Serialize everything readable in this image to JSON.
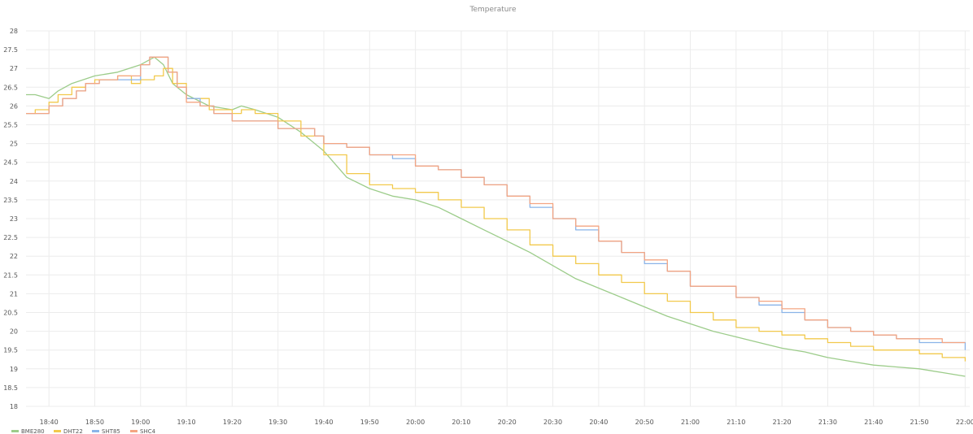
{
  "chart_data": {
    "type": "line",
    "title": "Temperature",
    "xlabel": "",
    "ylabel": "",
    "ylim": [
      18,
      28
    ],
    "xlim": [
      "18:35",
      "22:01"
    ],
    "grid": true,
    "legend_position": "bottom-left",
    "y_ticks": [
      "28",
      "27.5",
      "27",
      "26.5",
      "26",
      "25.5",
      "25",
      "24.5",
      "24",
      "23.5",
      "23",
      "22.5",
      "22",
      "21.5",
      "21",
      "20.5",
      "20",
      "19.5",
      "19",
      "18.5",
      "18"
    ],
    "x_ticks": [
      "18:40",
      "18:50",
      "19:00",
      "19:10",
      "19:20",
      "19:30",
      "19:40",
      "19:50",
      "20:00",
      "20:10",
      "20:20",
      "20:30",
      "20:40",
      "20:50",
      "21:00",
      "21:10",
      "21:20",
      "21:30",
      "21:40",
      "21:50",
      "22:00"
    ],
    "series": [
      {
        "name": "BME280",
        "color": "#9ccc8a",
        "step": false,
        "points": [
          [
            "18:35",
            26.3
          ],
          [
            "18:37",
            26.3
          ],
          [
            "18:40",
            26.2
          ],
          [
            "18:42",
            26.4
          ],
          [
            "18:45",
            26.6
          ],
          [
            "18:50",
            26.8
          ],
          [
            "18:55",
            26.9
          ],
          [
            "19:00",
            27.1
          ],
          [
            "19:03",
            27.3
          ],
          [
            "19:05",
            27.1
          ],
          [
            "19:07",
            26.6
          ],
          [
            "19:10",
            26.3
          ],
          [
            "19:15",
            26.0
          ],
          [
            "19:20",
            25.9
          ],
          [
            "19:22",
            26.0
          ],
          [
            "19:25",
            25.9
          ],
          [
            "19:30",
            25.7
          ],
          [
            "19:35",
            25.3
          ],
          [
            "19:40",
            24.8
          ],
          [
            "19:45",
            24.1
          ],
          [
            "19:50",
            23.8
          ],
          [
            "19:55",
            23.6
          ],
          [
            "20:00",
            23.5
          ],
          [
            "20:05",
            23.3
          ],
          [
            "20:10",
            23.0
          ],
          [
            "20:15",
            22.7
          ],
          [
            "20:20",
            22.4
          ],
          [
            "20:25",
            22.1
          ],
          [
            "20:30",
            21.75
          ],
          [
            "20:35",
            21.4
          ],
          [
            "20:40",
            21.15
          ],
          [
            "20:45",
            20.9
          ],
          [
            "20:50",
            20.65
          ],
          [
            "20:55",
            20.4
          ],
          [
            "21:00",
            20.2
          ],
          [
            "21:05",
            20.0
          ],
          [
            "21:10",
            19.85
          ],
          [
            "21:15",
            19.7
          ],
          [
            "21:20",
            19.55
          ],
          [
            "21:25",
            19.45
          ],
          [
            "21:30",
            19.3
          ],
          [
            "21:35",
            19.2
          ],
          [
            "21:40",
            19.1
          ],
          [
            "21:45",
            19.05
          ],
          [
            "21:50",
            19.0
          ],
          [
            "21:55",
            18.9
          ],
          [
            "22:00",
            18.8
          ]
        ]
      },
      {
        "name": "DHT22",
        "color": "#f2c94c",
        "step": true,
        "points": [
          [
            "18:35",
            25.8
          ],
          [
            "18:37",
            25.9
          ],
          [
            "18:40",
            26.1
          ],
          [
            "18:42",
            26.3
          ],
          [
            "18:45",
            26.5
          ],
          [
            "18:48",
            26.6
          ],
          [
            "18:50",
            26.7
          ],
          [
            "18:55",
            26.8
          ],
          [
            "18:58",
            26.6
          ],
          [
            "19:00",
            26.7
          ],
          [
            "19:03",
            26.8
          ],
          [
            "19:05",
            27.0
          ],
          [
            "19:07",
            26.6
          ],
          [
            "19:10",
            26.2
          ],
          [
            "19:15",
            25.9
          ],
          [
            "19:20",
            25.8
          ],
          [
            "19:22",
            25.9
          ],
          [
            "19:25",
            25.8
          ],
          [
            "19:30",
            25.6
          ],
          [
            "19:35",
            25.2
          ],
          [
            "19:40",
            24.7
          ],
          [
            "19:45",
            24.2
          ],
          [
            "19:50",
            23.9
          ],
          [
            "19:55",
            23.8
          ],
          [
            "20:00",
            23.7
          ],
          [
            "20:05",
            23.5
          ],
          [
            "20:10",
            23.3
          ],
          [
            "20:15",
            23.0
          ],
          [
            "20:20",
            22.7
          ],
          [
            "20:25",
            22.3
          ],
          [
            "20:30",
            22.0
          ],
          [
            "20:35",
            21.8
          ],
          [
            "20:40",
            21.5
          ],
          [
            "20:45",
            21.3
          ],
          [
            "20:50",
            21.0
          ],
          [
            "20:55",
            20.8
          ],
          [
            "21:00",
            20.5
          ],
          [
            "21:05",
            20.3
          ],
          [
            "21:10",
            20.1
          ],
          [
            "21:15",
            20.0
          ],
          [
            "21:20",
            19.9
          ],
          [
            "21:25",
            19.8
          ],
          [
            "21:30",
            19.7
          ],
          [
            "21:35",
            19.6
          ],
          [
            "21:40",
            19.5
          ],
          [
            "21:45",
            19.5
          ],
          [
            "21:50",
            19.4
          ],
          [
            "21:55",
            19.3
          ],
          [
            "22:00",
            19.2
          ]
        ]
      },
      {
        "name": "SHT85",
        "color": "#8ab4e8",
        "step": true,
        "points": [
          [
            "18:35",
            25.8
          ],
          [
            "18:38",
            25.8
          ],
          [
            "18:40",
            26.0
          ],
          [
            "18:43",
            26.2
          ],
          [
            "18:46",
            26.4
          ],
          [
            "18:48",
            26.6
          ],
          [
            "18:51",
            26.7
          ],
          [
            "18:55",
            26.7
          ],
          [
            "18:58",
            26.7
          ],
          [
            "19:00",
            27.1
          ],
          [
            "19:02",
            27.3
          ],
          [
            "19:04",
            27.3
          ],
          [
            "19:06",
            26.9
          ],
          [
            "19:08",
            26.5
          ],
          [
            "19:10",
            26.2
          ],
          [
            "19:13",
            26.0
          ],
          [
            "19:16",
            25.8
          ],
          [
            "19:20",
            25.6
          ],
          [
            "19:25",
            25.6
          ],
          [
            "19:30",
            25.4
          ],
          [
            "19:35",
            25.4
          ],
          [
            "19:38",
            25.2
          ],
          [
            "19:40",
            25.0
          ],
          [
            "19:45",
            24.9
          ],
          [
            "19:50",
            24.7
          ],
          [
            "19:55",
            24.6
          ],
          [
            "20:00",
            24.4
          ],
          [
            "20:05",
            24.3
          ],
          [
            "20:10",
            24.1
          ],
          [
            "20:15",
            23.9
          ],
          [
            "20:20",
            23.6
          ],
          [
            "20:25",
            23.3
          ],
          [
            "20:30",
            23.0
          ],
          [
            "20:35",
            22.7
          ],
          [
            "20:40",
            22.4
          ],
          [
            "20:45",
            22.1
          ],
          [
            "20:50",
            21.8
          ],
          [
            "20:55",
            21.6
          ],
          [
            "21:00",
            21.2
          ],
          [
            "21:05",
            21.2
          ],
          [
            "21:10",
            20.9
          ],
          [
            "21:15",
            20.7
          ],
          [
            "21:20",
            20.5
          ],
          [
            "21:25",
            20.3
          ],
          [
            "21:30",
            20.1
          ],
          [
            "21:35",
            20.0
          ],
          [
            "21:40",
            19.9
          ],
          [
            "21:45",
            19.8
          ],
          [
            "21:50",
            19.7
          ],
          [
            "21:55",
            19.7
          ],
          [
            "22:00",
            19.5
          ]
        ]
      },
      {
        "name": "SHC4",
        "color": "#f4a582",
        "step": true,
        "points": [
          [
            "18:35",
            25.8
          ],
          [
            "18:38",
            25.8
          ],
          [
            "18:40",
            26.0
          ],
          [
            "18:43",
            26.2
          ],
          [
            "18:46",
            26.4
          ],
          [
            "18:48",
            26.6
          ],
          [
            "18:51",
            26.7
          ],
          [
            "18:55",
            26.8
          ],
          [
            "18:58",
            26.8
          ],
          [
            "19:00",
            27.1
          ],
          [
            "19:02",
            27.3
          ],
          [
            "19:04",
            27.3
          ],
          [
            "19:06",
            26.9
          ],
          [
            "19:08",
            26.5
          ],
          [
            "19:10",
            26.1
          ],
          [
            "19:13",
            26.0
          ],
          [
            "19:16",
            25.8
          ],
          [
            "19:20",
            25.6
          ],
          [
            "19:25",
            25.6
          ],
          [
            "19:30",
            25.4
          ],
          [
            "19:35",
            25.4
          ],
          [
            "19:38",
            25.2
          ],
          [
            "19:40",
            25.0
          ],
          [
            "19:45",
            24.9
          ],
          [
            "19:50",
            24.7
          ],
          [
            "19:55",
            24.7
          ],
          [
            "20:00",
            24.4
          ],
          [
            "20:05",
            24.3
          ],
          [
            "20:10",
            24.1
          ],
          [
            "20:15",
            23.9
          ],
          [
            "20:20",
            23.6
          ],
          [
            "20:25",
            23.4
          ],
          [
            "20:30",
            23.0
          ],
          [
            "20:35",
            22.8
          ],
          [
            "20:40",
            22.4
          ],
          [
            "20:45",
            22.1
          ],
          [
            "20:50",
            21.9
          ],
          [
            "20:55",
            21.6
          ],
          [
            "21:00",
            21.2
          ],
          [
            "21:05",
            21.2
          ],
          [
            "21:10",
            20.9
          ],
          [
            "21:15",
            20.8
          ],
          [
            "21:20",
            20.6
          ],
          [
            "21:25",
            20.3
          ],
          [
            "21:30",
            20.1
          ],
          [
            "21:35",
            20.0
          ],
          [
            "21:40",
            19.9
          ],
          [
            "21:45",
            19.8
          ],
          [
            "21:50",
            19.8
          ],
          [
            "21:55",
            19.7
          ],
          [
            "22:00",
            19.7
          ]
        ]
      }
    ]
  }
}
